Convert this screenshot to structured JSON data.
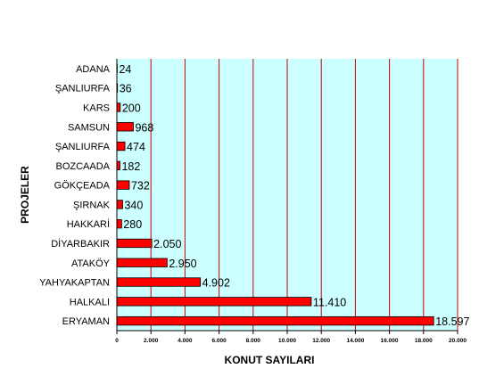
{
  "chart_data": {
    "type": "bar",
    "orientation": "horizontal",
    "categories": [
      "ADANA",
      "ŞANLIURFA",
      "KARS",
      "SAMSUN",
      "ŞANLIURFA",
      "BOZCAADA",
      "GÖKÇEADA",
      "ŞIRNAK",
      "HAKKARİ",
      "DİYARBAKIR",
      "ATAKÖY",
      "YAHYAKAPTAN",
      "HALKALI",
      "ERYAMAN"
    ],
    "values": [
      24,
      36,
      200,
      968,
      474,
      182,
      732,
      340,
      280,
      2050,
      2950,
      4902,
      11410,
      18597
    ],
    "value_labels": [
      "24",
      "36",
      "200",
      "968",
      "474",
      "182",
      "732",
      "340",
      "280",
      "2.050",
      "2.950",
      "4.902",
      "11.410",
      "18.597"
    ],
    "xlabel": "KONUT SAYILARI",
    "ylabel": "PROJELER",
    "xlim": [
      0,
      20000
    ],
    "xticks": [
      0,
      2000,
      4000,
      6000,
      8000,
      10000,
      12000,
      14000,
      16000,
      18000,
      20000
    ],
    "xtick_labels": [
      "0",
      "2.000",
      "4.000",
      "6.000",
      "8.000",
      "10.000",
      "12.000",
      "14.000",
      "16.000",
      "18.000",
      "20.000"
    ],
    "grid": true,
    "colors": {
      "bar": "#ff0000",
      "bar_outline": "#000000",
      "plot_background": "#ccffff",
      "gridline": "#cc0000"
    }
  }
}
